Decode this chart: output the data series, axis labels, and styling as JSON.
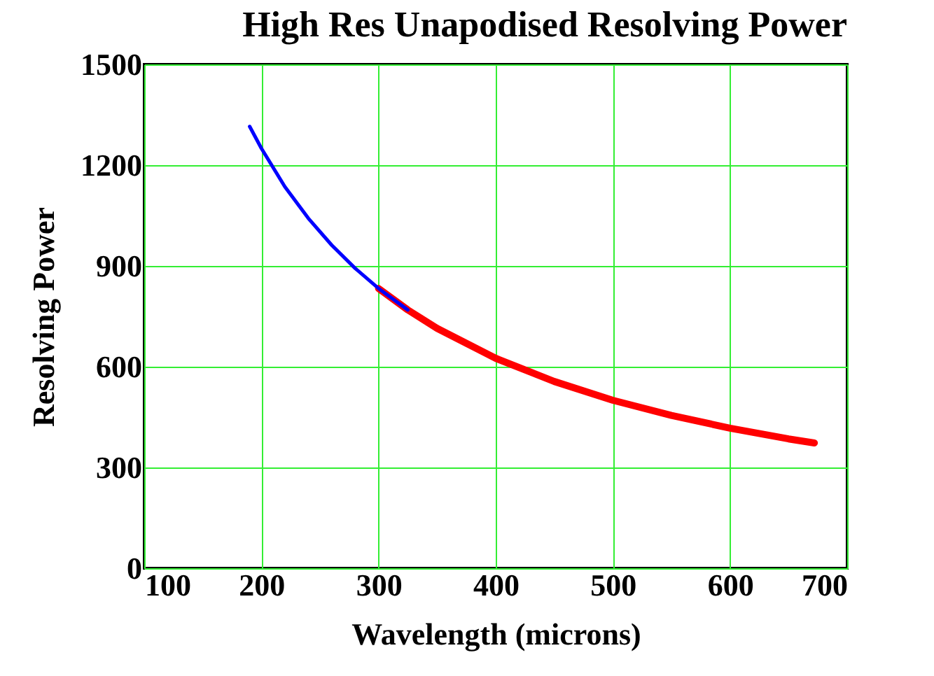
{
  "chart_data": {
    "type": "line",
    "title": "High Res Unapodised Resolving Power",
    "xlabel": "Wavelength (microns)",
    "ylabel": "Resolving Power",
    "xlim": [
      100,
      700
    ],
    "xticks": [
      100,
      200,
      300,
      400,
      500,
      600,
      700
    ],
    "ylim": [
      0,
      1500
    ],
    "yticks": [
      0,
      300,
      600,
      900,
      1200,
      1500
    ],
    "grid": true,
    "marker": "none",
    "line_style": "solid",
    "series": [
      {
        "color": "#0000ff",
        "x": [
          190,
          200,
          220,
          240,
          260,
          280,
          300,
          325
        ],
        "values": [
          1315,
          1250,
          1136,
          1042,
          962,
          893,
          833,
          769
        ]
      },
      {
        "color": "#ff0000",
        "x": [
          300,
          325,
          350,
          400,
          450,
          500,
          550,
          600,
          650,
          672
        ],
        "values": [
          833,
          769,
          714,
          625,
          556,
          500,
          455,
          417,
          385,
          373
        ]
      }
    ]
  }
}
